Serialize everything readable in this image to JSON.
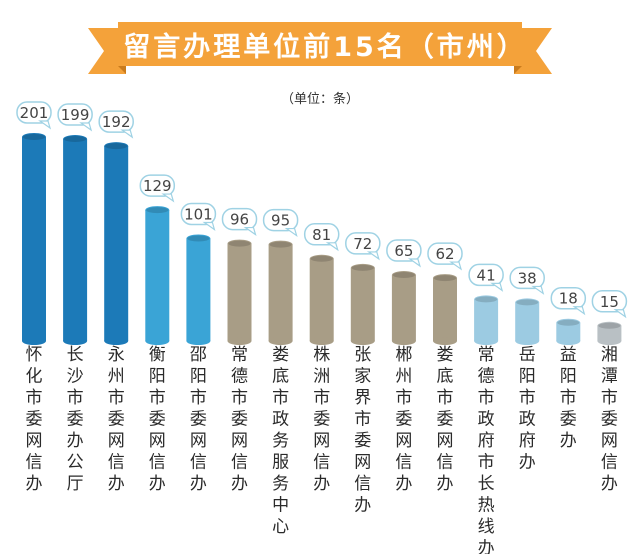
{
  "header": {
    "title": "留言办理单位前15名（市州）",
    "unit_note": "（单位：条）",
    "banner_color": "#f4a23a",
    "banner_fold_color": "#c97b1c"
  },
  "chart_data": {
    "type": "bar",
    "title": "留言办理单位前15名（市州）",
    "unit": "（单位：条）",
    "categories": [
      "怀化市委网信办",
      "长沙市委办公厅",
      "永州市委网信办",
      "衡阳市委网信办",
      "邵阳市委网信办",
      "常德市委网信办",
      "娄底市政务服务中心",
      "株洲市委网信办",
      "张家界市委网信办",
      "郴州市委网信办",
      "娄底市委网信办",
      "常德市政府市长热线办",
      "岳阳市政府办",
      "益阳市委办",
      "湘潭市委网信办"
    ],
    "values": [
      201,
      199,
      192,
      129,
      101,
      96,
      95,
      81,
      72,
      65,
      62,
      41,
      38,
      18,
      15
    ],
    "colors": [
      "#1c7ab8",
      "#1c7ab8",
      "#1c7ab8",
      "#3aa4d6",
      "#3aa4d6",
      "#a89d86",
      "#a89d86",
      "#a89d86",
      "#a89d86",
      "#a89d86",
      "#a89d86",
      "#9ccbe2",
      "#9ccbe2",
      "#9ccbe2",
      "#b9c0c4"
    ],
    "data_labels": true,
    "grid": false,
    "legend": "none"
  }
}
